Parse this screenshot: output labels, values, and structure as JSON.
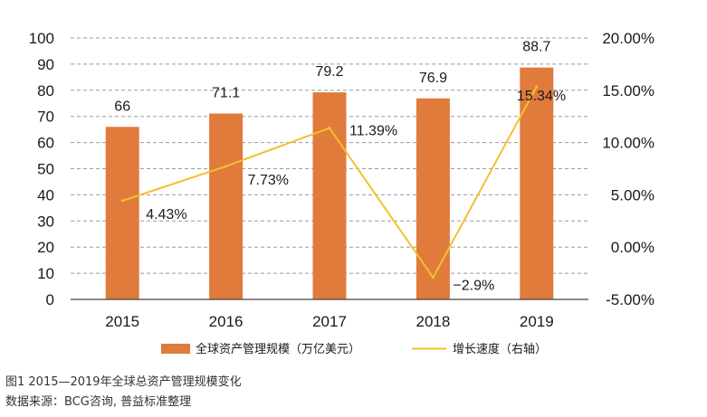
{
  "chart_data": {
    "type": "bar",
    "categories": [
      "2015",
      "2016",
      "2017",
      "2018",
      "2019"
    ],
    "series": [
      {
        "name": "全球资产管理规模（万亿美元）",
        "type": "bar",
        "axis": "left",
        "values": [
          66,
          71.1,
          79.2,
          76.9,
          88.7
        ],
        "labels": [
          "66",
          "71.1",
          "79.2",
          "76.9",
          "88.7"
        ],
        "color": "#E07B3C"
      },
      {
        "name": "增长速度（右轴）",
        "type": "line",
        "axis": "right",
        "values": [
          4.43,
          7.73,
          11.39,
          -2.9,
          15.34
        ],
        "labels": [
          "4.43%",
          "7.73%",
          "11.39%",
          "−2.9%",
          "15.34%"
        ],
        "color": "#F2C02E"
      }
    ],
    "y_left": {
      "ylim": [
        0,
        100
      ],
      "ticks": [
        "0",
        "10",
        "20",
        "30",
        "40",
        "50",
        "60",
        "70",
        "80",
        "90",
        "100"
      ]
    },
    "y_right": {
      "ylim": [
        -5,
        20
      ],
      "ticks": [
        "-5.00%",
        "0.00%",
        "5.00%",
        "10.00%",
        "15.00%",
        "20.00%"
      ]
    },
    "grid": true,
    "legend_position": "bottom"
  },
  "caption": {
    "title": "图1  2015—2019年全球总资产管理规模变化",
    "source": "数据来源：BCG咨询, 普益标准整理"
  }
}
